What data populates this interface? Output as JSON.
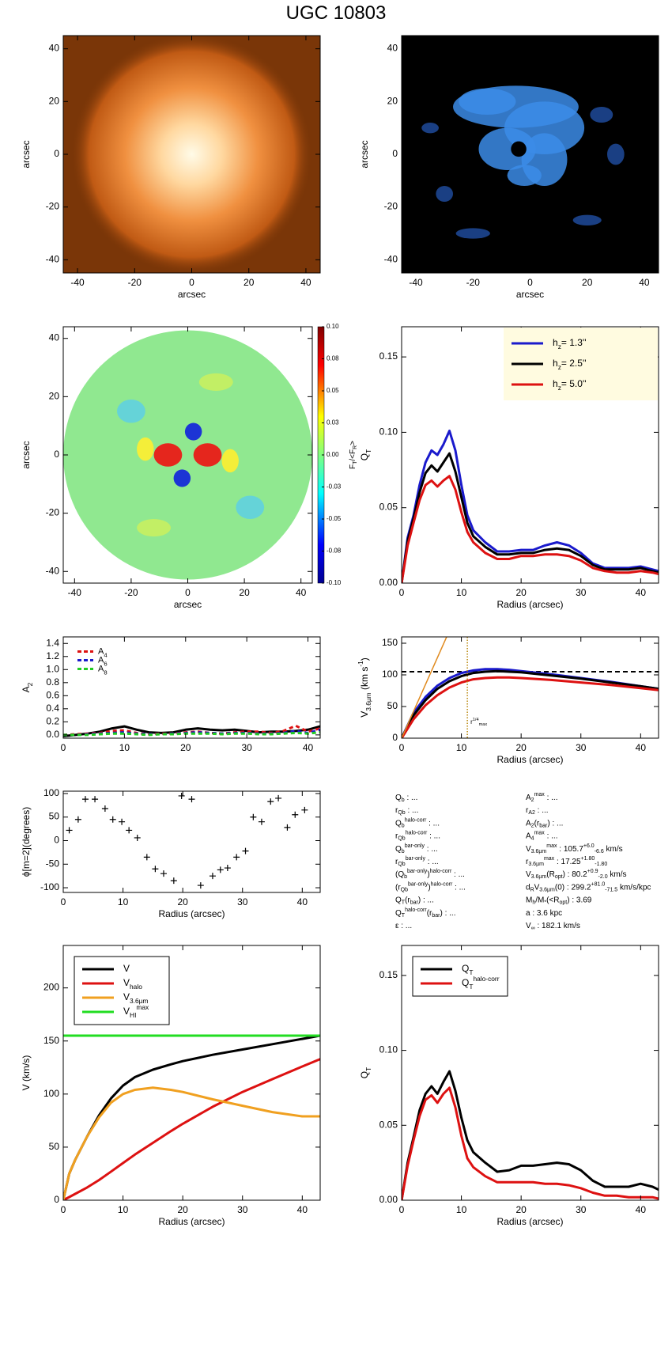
{
  "title": "UGC 10803",
  "chart_data": [
    {
      "type": "image",
      "colormap": "orange",
      "xlim": [
        -45,
        45
      ],
      "ylim": [
        -45,
        45
      ],
      "xticks": [
        -40,
        -20,
        0,
        20,
        40
      ],
      "yticks": [
        -40,
        -20,
        0,
        20,
        40
      ],
      "xlabel": "arcsec",
      "ylabel": "arcsec"
    },
    {
      "type": "image",
      "colormap": "blue",
      "xlim": [
        -45,
        45
      ],
      "ylim": [
        -45,
        45
      ],
      "xticks": [
        -40,
        -20,
        0,
        20,
        40
      ],
      "yticks": [
        -40,
        -20,
        0,
        20,
        40
      ],
      "xlabel": "arcsec",
      "ylabel": "arcsec"
    },
    {
      "type": "image",
      "colormap": "jet",
      "xlim": [
        -44,
        44
      ],
      "ylim": [
        -44,
        44
      ],
      "xticks": [
        -40,
        -20,
        0,
        20,
        40
      ],
      "yticks": [
        -40,
        -20,
        0,
        20,
        40
      ],
      "xlabel": "arcsec",
      "ylabel": "arcsec",
      "colorbar": {
        "clim": [
          -0.1,
          0.1
        ],
        "label": "F_{T}/<F_{R}>",
        "ticks": [
          {
            "value": 0.1,
            "label": "0.10"
          },
          {
            "value": 0.075,
            "label": "0.08"
          },
          {
            "value": 0.05,
            "label": "0.05"
          },
          {
            "value": 0.025,
            "label": "0.03"
          },
          {
            "value": 0,
            "label": "0.00"
          },
          {
            "value": -0.025,
            "label": "-0.03"
          },
          {
            "value": -0.05,
            "label": "-0.05"
          },
          {
            "value": -0.075,
            "label": "-0.08"
          },
          {
            "value": -0.1,
            "label": "-0.10"
          }
        ]
      }
    },
    {
      "type": "line",
      "xlim": [
        0,
        43
      ],
      "ylim": [
        0,
        0.17
      ],
      "xticks": [
        0,
        10,
        20,
        30,
        40
      ],
      "yticks": [
        {
          "value": 0,
          "label": "0.00"
        },
        {
          "value": 0.05,
          "label": "0.05"
        },
        {
          "value": 0.1,
          "label": "0.10"
        },
        {
          "value": 0.15,
          "label": "0.15"
        }
      ],
      "xlabel": "Radius (arcsec)",
      "ylabel": "Q_{T}",
      "legend": "upper right",
      "legend_text_colored": true,
      "x": [
        0,
        1,
        2,
        3,
        4,
        5,
        6,
        7,
        8,
        9,
        10,
        11,
        12,
        14,
        16,
        18,
        20,
        22,
        24,
        26,
        28,
        30,
        32,
        34,
        36,
        38,
        40,
        42,
        43
      ],
      "series": [
        {
          "name": "h_{z}=  1.3''",
          "color": "#1a1acc",
          "values": [
            0,
            0.03,
            0.045,
            0.065,
            0.08,
            0.088,
            0.085,
            0.092,
            0.101,
            0.088,
            0.065,
            0.045,
            0.035,
            0.027,
            0.021,
            0.021,
            0.022,
            0.022,
            0.025,
            0.027,
            0.025,
            0.02,
            0.013,
            0.01,
            0.01,
            0.01,
            0.011,
            0.009,
            0.008
          ]
        },
        {
          "name": "h_{z}=  2.5''",
          "color": "#000000",
          "values": [
            0,
            0.028,
            0.043,
            0.06,
            0.073,
            0.078,
            0.074,
            0.08,
            0.086,
            0.074,
            0.057,
            0.04,
            0.031,
            0.024,
            0.019,
            0.019,
            0.02,
            0.02,
            0.022,
            0.023,
            0.022,
            0.018,
            0.012,
            0.009,
            0.009,
            0.009,
            0.01,
            0.008,
            0.007
          ]
        },
        {
          "name": "h_{z}=  5.0''",
          "color": "#dd1111",
          "values": [
            0,
            0.025,
            0.04,
            0.055,
            0.065,
            0.068,
            0.064,
            0.068,
            0.071,
            0.062,
            0.047,
            0.034,
            0.027,
            0.02,
            0.016,
            0.016,
            0.018,
            0.018,
            0.019,
            0.019,
            0.018,
            0.015,
            0.01,
            0.008,
            0.007,
            0.007,
            0.008,
            0.007,
            0.006
          ]
        }
      ]
    },
    {
      "type": "line",
      "xlim": [
        0,
        42
      ],
      "ylim": [
        -0.05,
        1.5
      ],
      "xticks": [
        0,
        10,
        20,
        30,
        40
      ],
      "yticks": [
        {
          "value": 0,
          "label": "0.0"
        },
        {
          "value": 0.2,
          "label": "0.2"
        },
        {
          "value": 0.4,
          "label": "0.4"
        },
        {
          "value": 0.6,
          "label": "0.6"
        },
        {
          "value": 0.8,
          "label": "0.8"
        },
        {
          "value": 1.0,
          "label": "1.0"
        },
        {
          "value": 1.2,
          "label": "1.2"
        },
        {
          "value": 1.4,
          "label": "1.4"
        }
      ],
      "ylabel": "A_{2}",
      "legend": "upper left",
      "x": [
        0,
        2,
        4,
        6,
        8,
        10,
        12,
        14,
        16,
        18,
        20,
        22,
        24,
        26,
        28,
        30,
        32,
        34,
        36,
        38,
        40,
        42
      ],
      "series": [
        {
          "color": "#000000",
          "values": [
            -0.02,
            0,
            0.02,
            0.05,
            0.1,
            0.13,
            0.08,
            0.04,
            0.03,
            0.04,
            0.08,
            0.1,
            0.08,
            0.07,
            0.08,
            0.06,
            0.04,
            0.05,
            0.05,
            0.06,
            0.08,
            0.13
          ]
        },
        {
          "name": "A_{4}",
          "color": "#dd1111",
          "linestyle": "dashed",
          "values": [
            0,
            0.01,
            0.02,
            0.03,
            0.06,
            0.07,
            0.03,
            0.01,
            0.02,
            0.02,
            0.04,
            0.05,
            0.03,
            0.02,
            0.04,
            0.05,
            0.05,
            0.03,
            0.06,
            0.14,
            0.05,
            0.1
          ]
        },
        {
          "name": "A_{6}",
          "color": "#1a1acc",
          "linestyle": "dashed",
          "values": [
            0,
            0,
            0.01,
            0.02,
            0.03,
            0.04,
            0.02,
            0.01,
            0.01,
            0.02,
            0.03,
            0.04,
            0.03,
            0.02,
            0.03,
            0.03,
            0.02,
            0.02,
            0.03,
            0.06,
            0.03,
            0.08
          ]
        },
        {
          "name": "A_{8}",
          "color": "#22cc22",
          "linestyle": "dashed",
          "values": [
            0,
            0,
            0,
            0.01,
            0.02,
            0.02,
            0.01,
            0,
            0.01,
            0.01,
            0.02,
            0.02,
            0.02,
            0.01,
            0.02,
            0.02,
            0.01,
            0.01,
            0.02,
            0.03,
            0.02,
            0.04
          ]
        }
      ]
    },
    {
      "type": "line",
      "xlim": [
        0,
        43
      ],
      "ylim": [
        0,
        160
      ],
      "xticks": [
        0,
        10,
        20,
        30,
        40
      ],
      "yticks": [
        0,
        50,
        100,
        150
      ],
      "xlabel": "Radius (arcsec)",
      "ylabel": "V_{3.6µm} (km s^{-1})",
      "x": [
        0,
        2,
        4,
        6,
        8,
        10,
        12,
        14,
        16,
        18,
        20,
        25,
        30,
        35,
        40,
        43
      ],
      "hlines": [
        {
          "value": 105,
          "color": "#000000",
          "linestyle": "dashed"
        }
      ],
      "vlines": [
        {
          "value": 11,
          "color": "#b8860b",
          "linestyle": "dotted",
          "label": "r^{1/4}_{max}"
        }
      ],
      "series": [
        {
          "color": "#1a1acc",
          "values": [
            0,
            40,
            65,
            83,
            95,
            103,
            107,
            109,
            109,
            108,
            106,
            101,
            95,
            89,
            82,
            78
          ]
        },
        {
          "color": "#000000",
          "values": [
            0,
            36,
            60,
            78,
            90,
            98,
            103,
            105,
            106,
            105,
            104,
            99,
            94,
            88,
            82,
            78
          ]
        },
        {
          "color": "#dd1111",
          "values": [
            0,
            30,
            52,
            68,
            80,
            88,
            93,
            95,
            96,
            96,
            95,
            92,
            88,
            84,
            79,
            76
          ]
        },
        {
          "color": "#e08a1e",
          "x": [
            0,
            8
          ],
          "values": [
            0,
            170
          ],
          "width": 1.5
        }
      ]
    },
    {
      "type": "scatter",
      "xlim": [
        0,
        43
      ],
      "ylim": [
        -110,
        105
      ],
      "xticks": [
        0,
        10,
        20,
        30,
        40
      ],
      "yticks": [
        -100,
        -50,
        0,
        50,
        100
      ],
      "xlabel": "Radius (arcsec)",
      "ylabel": "ϕ[m=2](degrees)",
      "color": "#000000",
      "x": [
        1,
        2.5,
        3.7,
        5.3,
        7,
        8.3,
        9.8,
        11,
        12.4,
        14,
        15.4,
        16.8,
        18.5,
        19.8,
        21.5,
        23,
        25,
        26.3,
        27.5,
        29,
        30.5,
        31.8,
        33.2,
        34.7,
        36,
        37.5,
        38.8,
        40.4
      ],
      "values": [
        22,
        45,
        88,
        88,
        68,
        45,
        40,
        22,
        6,
        -35,
        -60,
        -70,
        -85,
        95,
        88,
        -95,
        -75,
        -62,
        -58,
        -35,
        -22,
        50,
        40,
        83,
        90,
        28,
        55,
        65
      ]
    },
    {
      "type": "line",
      "xlim": [
        0,
        43
      ],
      "ylim": [
        0,
        240
      ],
      "xticks": [
        0,
        10,
        20,
        30,
        40
      ],
      "yticks": [
        0,
        50,
        100,
        150,
        200
      ],
      "xlabel": "Radius (arcsec)",
      "ylabel": "V (km/s)",
      "legend": "upper left",
      "x": [
        0,
        1,
        2,
        4,
        6,
        8,
        10,
        12,
        15,
        18,
        20,
        25,
        30,
        35,
        40,
        43
      ],
      "series": [
        {
          "name": "V",
          "color": "#000000",
          "values": [
            0,
            25,
            38,
            60,
            80,
            96,
            108,
            116,
            123,
            128,
            131,
            137,
            142,
            147,
            152,
            155
          ]
        },
        {
          "name": "V_{halo}",
          "color": "#dd1111",
          "values": [
            0,
            3,
            6,
            12,
            19,
            27,
            35,
            43,
            54,
            65,
            72,
            88,
            102,
            114,
            126,
            133
          ]
        },
        {
          "name": "V_{3.6µm}",
          "color": "#f0a020",
          "values": [
            0,
            25,
            38,
            60,
            78,
            92,
            100,
            104,
            106,
            104,
            102,
            95,
            89,
            83,
            79,
            79
          ]
        },
        {
          "name": "V_{HI}^{max}",
          "color": "#22dd22",
          "values": [
            155,
            155,
            155,
            155,
            155,
            155,
            155,
            155,
            155,
            155,
            155,
            155,
            155,
            155,
            155,
            155
          ]
        }
      ]
    },
    {
      "type": "line",
      "xlim": [
        0,
        43
      ],
      "ylim": [
        0,
        0.17
      ],
      "xticks": [
        0,
        10,
        20,
        30,
        40
      ],
      "yticks": [
        {
          "value": 0,
          "label": "0.00"
        },
        {
          "value": 0.05,
          "label": "0.05"
        },
        {
          "value": 0.1,
          "label": "0.10"
        },
        {
          "value": 0.15,
          "label": "0.15"
        }
      ],
      "xlabel": "Radius (arcsec)",
      "ylabel": "Q_{T}",
      "legend": "upper left",
      "x": [
        0,
        1,
        2,
        3,
        4,
        5,
        6,
        7,
        8,
        9,
        10,
        11,
        12,
        14,
        16,
        18,
        20,
        22,
        24,
        26,
        28,
        30,
        32,
        34,
        36,
        38,
        40,
        42,
        43
      ],
      "series": [
        {
          "name": "Q_{T}",
          "color": "#000000",
          "values": [
            0,
            0.025,
            0.042,
            0.06,
            0.071,
            0.076,
            0.071,
            0.079,
            0.086,
            0.073,
            0.055,
            0.04,
            0.032,
            0.025,
            0.019,
            0.02,
            0.023,
            0.023,
            0.024,
            0.025,
            0.024,
            0.02,
            0.013,
            0.009,
            0.009,
            0.009,
            0.011,
            0.009,
            0.007
          ]
        },
        {
          "name": "Q_{T}^{halo-corr}",
          "color": "#dd1111",
          "values": [
            0,
            0.023,
            0.04,
            0.056,
            0.067,
            0.07,
            0.065,
            0.071,
            0.075,
            0.062,
            0.043,
            0.028,
            0.022,
            0.016,
            0.012,
            0.012,
            0.012,
            0.012,
            0.011,
            0.011,
            0.01,
            0.008,
            0.005,
            0.003,
            0.003,
            0.002,
            0.002,
            0.002,
            0.001
          ]
        }
      ]
    }
  ],
  "parameters": {
    "left": [
      "Q_{b} : ...",
      "r_{Qb} : ...",
      "Q_{b}^{halo-corr} : ...",
      "r_{Qb}^{halo-corr} : ...",
      "Q_{b}^{bar-only} : ...",
      "r_{Qb}^{bar-only} : ...",
      "(Q_{b}^{bar-only})^{halo-corr} : ...",
      "(r_{Qb}^{bar-only})^{halo-corr} : ...",
      "Q_{T}(r_{bar}) : ...",
      "Q_{T}^{halo-corr}(r_{bar}) : ...",
      "ε : ..."
    ],
    "right": [
      "A_{2}^{max} : ...",
      "r_{A2} : ...",
      "A_{2}(r_{bar}) : ...",
      "A_{4}^{max} : ...",
      "V_{3.6µm}^{max} :  105.7^{+6.0}_{-6.6} km/s",
      "r_{3.6µm}^{max} :  17.25^{+1.80}_{-1.80}",
      "V_{3.6µm}(R_{opt}) :  80.2^{+0.9}_{-2.0} km/s",
      "d_{R}V_{3.6µm}(0) :  299.2^{+81.0}_{-71.5} km/s/kpc",
      "M_{h}/M_{*}(<R_{opt}) :  3.69",
      "a :  3.6 kpc",
      "V_{∞} :  182.1 km/s"
    ]
  }
}
